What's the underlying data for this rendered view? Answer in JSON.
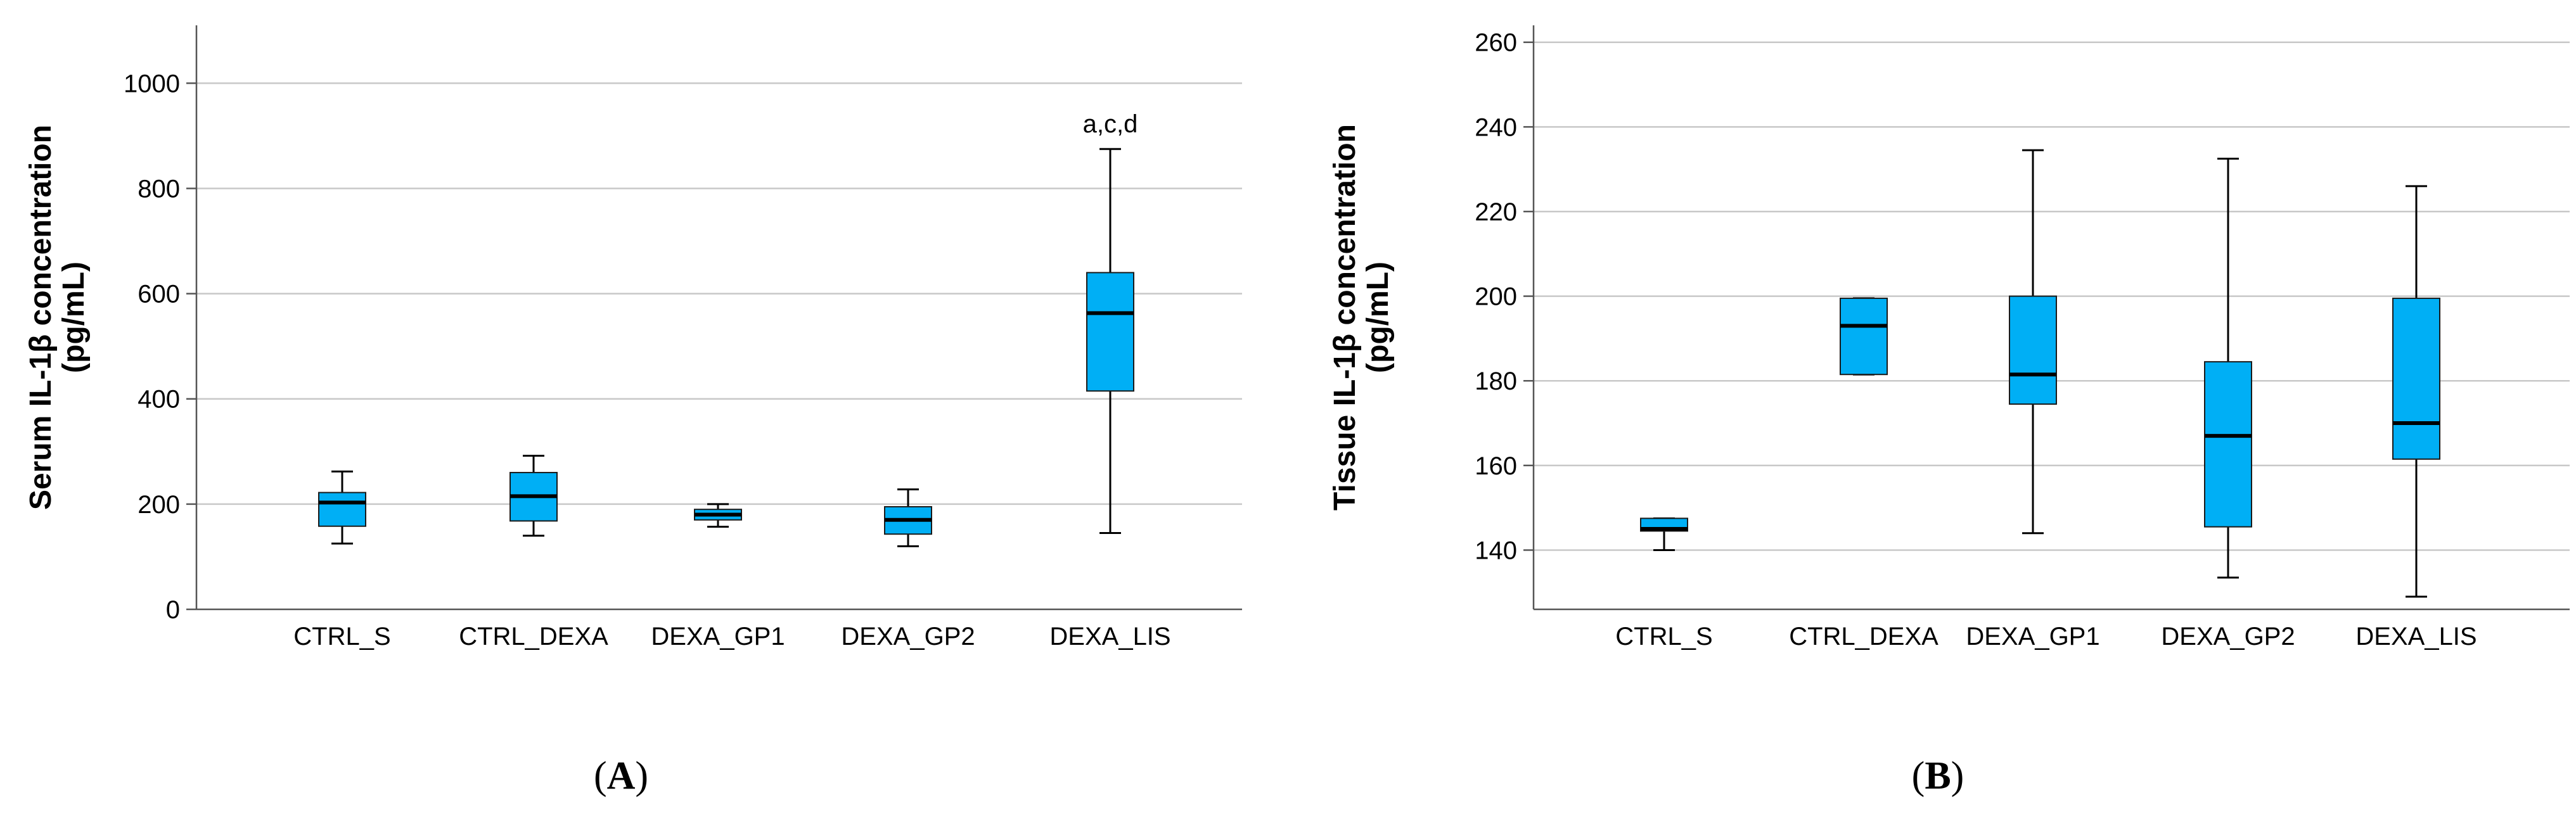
{
  "chart_data": [
    {
      "type": "box",
      "panel_label": "(A)",
      "panel_letter": "A",
      "ylabel_line1": "Serum IL-1β concentration",
      "ylabel_line2": "(pg/mL)",
      "xlabel": "",
      "ylim": [
        0,
        1110
      ],
      "yticks": [
        0,
        200,
        400,
        600,
        800,
        1000
      ],
      "grid": true,
      "categories": [
        "CTRL_S",
        "CTRL_DEXA",
        "DEXA_GP1",
        "DEXA_GP2",
        "DEXA_LIS"
      ],
      "boxes": [
        {
          "min": 125,
          "q1": 158,
          "median": 203,
          "q3": 222,
          "max": 262
        },
        {
          "min": 140,
          "q1": 168,
          "median": 215,
          "q3": 260,
          "max": 292
        },
        {
          "min": 157,
          "q1": 170,
          "median": 180,
          "q3": 190,
          "max": 200
        },
        {
          "min": 120,
          "q1": 143,
          "median": 170,
          "q3": 195,
          "max": 228
        },
        {
          "min": 145,
          "q1": 415,
          "median": 563,
          "q3": 640,
          "max": 875
        }
      ],
      "annotations": [
        {
          "category": "DEXA_LIS",
          "text": "a,c,d",
          "y": 875
        }
      ]
    },
    {
      "type": "box",
      "panel_label": "(B)",
      "panel_letter": "B",
      "ylabel_line1": "Tissue IL-1β concentration",
      "ylabel_line2": "(pg/mL)",
      "xlabel": "",
      "ylim": [
        126,
        264
      ],
      "yticks": [
        140,
        160,
        180,
        200,
        220,
        240,
        260
      ],
      "grid": true,
      "categories": [
        "CTRL_S",
        "CTRL_DEXA",
        "DEXA_GP1",
        "DEXA_GP2",
        "DEXA_LIS"
      ],
      "boxes": [
        {
          "min": 140,
          "q1": 144.5,
          "median": 145,
          "q3": 147.5,
          "max": 147.5
        },
        {
          "min": 181.5,
          "q1": 181.5,
          "median": 193,
          "q3": 199.5,
          "max": 199.5
        },
        {
          "min": 144,
          "q1": 174.5,
          "median": 181.5,
          "q3": 200,
          "max": 234.5
        },
        {
          "min": 133.5,
          "q1": 145.5,
          "median": 167,
          "q3": 184.5,
          "max": 232.5
        },
        {
          "min": 129,
          "q1": 161.5,
          "median": 170,
          "q3": 199.5,
          "max": 226
        }
      ],
      "annotations": []
    }
  ],
  "colors": {
    "box_fill": "#00AFF5",
    "grid": "#C8C8C8",
    "axis": "#555555",
    "text": "#000000"
  }
}
